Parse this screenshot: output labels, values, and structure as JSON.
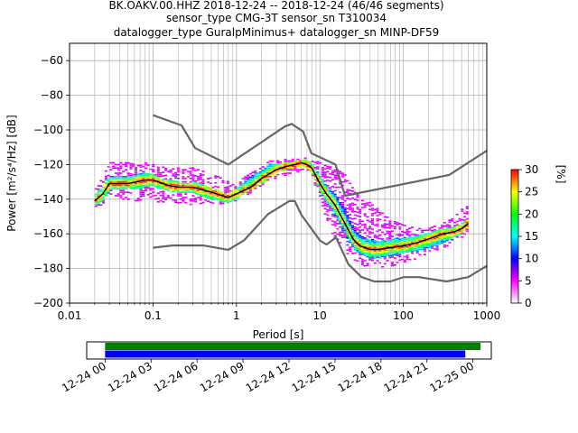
{
  "title": {
    "line1": "BK.OAKV.00.HHZ   2018-12-24 -- 2018-12-24  (46/46 segments)",
    "line2": "sensor_type CMG-3T sensor_sn T310034",
    "line3": "datalogger_type GuralpMinimus+ datalogger_sn MINP-DF59"
  },
  "chart_data": [
    {
      "type": "heatmap",
      "xlabel": "Period [s]",
      "ylabel": "Power [m²/s⁴/Hz] [dB]",
      "xscale": "log",
      "xlim": [
        0.01,
        1000
      ],
      "ylim": [
        -200,
        -50
      ],
      "x_ticks": [
        0.01,
        0.1,
        1,
        10,
        100,
        1000
      ],
      "x_tick_labels": [
        "0.01",
        "0.1",
        "1",
        "10",
        "100",
        "1000"
      ],
      "y_ticks": [
        -200,
        -180,
        -160,
        -140,
        -120,
        -100,
        -80,
        -60
      ],
      "y_tick_labels": [
        "−200",
        "−180",
        "−160",
        "−140",
        "−120",
        "−100",
        "−80",
        "−60"
      ],
      "grid": true,
      "colorbar": {
        "label": "[%]",
        "range": [
          0,
          30
        ],
        "ticks": [
          "0",
          "5",
          "10",
          "15",
          "20",
          "25",
          "30"
        ],
        "colormap": [
          "#ffffff",
          "#ff00ff",
          "#0000ff",
          "#00ffff",
          "#00ff00",
          "#ffff00",
          "#ff0000"
        ]
      },
      "series": [
        {
          "role": "new_high_noise_model",
          "color": "#666666",
          "x": [
            0.1,
            0.22,
            0.32,
            0.8,
            3.8,
            4.6,
            6.3,
            7.9,
            15.4,
            20,
            354.8,
            1000
          ],
          "y": [
            -91.5,
            -97.4,
            -110.5,
            -120,
            -98,
            -96.5,
            -101,
            -113.5,
            -120,
            -138,
            -126,
            -112
          ]
        },
        {
          "role": "new_low_noise_model",
          "color": "#666666",
          "x": [
            0.1,
            0.17,
            0.4,
            0.8,
            1.24,
            2.4,
            4.3,
            5,
            6,
            10,
            12,
            15.6,
            21.9,
            31.6,
            45,
            70,
            101,
            154,
            328,
            600,
            1000
          ],
          "y": [
            -168,
            -166.7,
            -166.7,
            -169.2,
            -163.7,
            -148.6,
            -141.1,
            -141.1,
            -149,
            -163.8,
            -166.2,
            -162.1,
            -177.5,
            -185,
            -187.5,
            -187.5,
            -185,
            -185,
            -187.5,
            -185,
            -178.5
          ]
        },
        {
          "role": "mode",
          "color": "#000000",
          "x": [
            0.02,
            0.025,
            0.03,
            0.05,
            0.08,
            0.1,
            0.15,
            0.2,
            0.3,
            0.5,
            0.8,
            1.0,
            1.5,
            2,
            3,
            4,
            5,
            6,
            7,
            8,
            10,
            12,
            15,
            20,
            25,
            30,
            40,
            50,
            70,
            100,
            150,
            200,
            300,
            400,
            500,
            600
          ],
          "y": [
            -141,
            -137,
            -131,
            -131,
            -129,
            -129,
            -132,
            -133,
            -133,
            -136,
            -139,
            -137,
            -133,
            -128,
            -123,
            -121,
            -120,
            -119,
            -120,
            -122,
            -131,
            -137,
            -143,
            -154,
            -163,
            -167,
            -169,
            -169,
            -168,
            -167,
            -165,
            -163,
            -160,
            -159,
            -157,
            -154
          ]
        }
      ],
      "density": {
        "x": [
          0.02,
          0.025,
          0.03,
          0.04,
          0.05,
          0.06,
          0.08,
          0.1,
          0.12,
          0.15,
          0.2,
          0.25,
          0.3,
          0.4,
          0.5,
          0.6,
          0.8,
          1.0,
          1.2,
          1.5,
          2,
          2.5,
          3,
          4,
          5,
          6,
          7,
          8,
          10,
          12,
          15,
          20,
          25,
          30,
          40,
          50,
          70,
          100,
          150,
          200,
          300,
          400,
          500,
          600
        ],
        "core_low": [
          -144,
          -141,
          -135,
          -134,
          -134,
          -134,
          -133,
          -132,
          -134,
          -135,
          -136,
          -136,
          -137,
          -138,
          -140,
          -141,
          -142,
          -140,
          -137,
          -134,
          -131,
          -127,
          -125,
          -123,
          -122,
          -121,
          -122,
          -125,
          -135,
          -142,
          -149,
          -160,
          -168,
          -172,
          -174,
          -174,
          -173,
          -171,
          -170,
          -168,
          -165,
          -162,
          -160,
          -156
        ],
        "core_high": [
          -137,
          -133,
          -127,
          -127,
          -127,
          -126,
          -125,
          -125,
          -128,
          -129,
          -130,
          -131,
          -130,
          -132,
          -134,
          -135,
          -137,
          -134,
          -130,
          -127,
          -124,
          -119,
          -120,
          -119,
          -118,
          -117,
          -117,
          -119,
          -126,
          -132,
          -136,
          -146,
          -156,
          -161,
          -163,
          -164,
          -163,
          -162,
          -161,
          -159,
          -157,
          -156,
          -154,
          -151
        ],
        "scatter_low": [
          -145,
          -143,
          -138,
          -140,
          -140,
          -141,
          -141,
          -140,
          -142,
          -142,
          -142,
          -143,
          -143,
          -143,
          -142,
          -144,
          -142,
          -141,
          -139,
          -136,
          -132,
          -129,
          -128,
          -126,
          -124,
          -124,
          -124,
          -127,
          -140,
          -152,
          -163,
          -170,
          -175,
          -178,
          -179,
          -180,
          -179,
          -177,
          -174,
          -171,
          -168,
          -165,
          -163,
          -158
        ],
        "scatter_high": [
          -134,
          -128,
          -119,
          -119,
          -119,
          -120,
          -119,
          -120,
          -122,
          -121,
          -122,
          -122,
          -122,
          -124,
          -126,
          -127,
          -130,
          -131,
          -128,
          -125,
          -122,
          -118,
          -118,
          -117,
          -117,
          -117,
          -116,
          -117,
          -119,
          -121,
          -122,
          -126,
          -134,
          -138,
          -141,
          -146,
          -152,
          -155,
          -157,
          -157,
          -154,
          -151,
          -146,
          -144
        ]
      }
    },
    {
      "type": "timeline",
      "x_tick_labels": [
        "12-24 00",
        "12-24 03",
        "12-24 06",
        "12-24 09",
        "12-24 12",
        "12-24 15",
        "12-24 18",
        "12-24 21",
        "12-25 00"
      ],
      "x_hours": [
        0,
        3,
        6,
        9,
        12,
        15,
        18,
        21,
        24
      ],
      "xlim_hours": [
        -1.2,
        25.2
      ],
      "bars": [
        {
          "role": "data_coverage",
          "color": "#008000",
          "start_hour": 0,
          "end_hour": 24.5
        },
        {
          "role": "psd_coverage",
          "color": "#0000ff",
          "start_hour": 0,
          "end_hour": 23.5
        }
      ]
    }
  ]
}
